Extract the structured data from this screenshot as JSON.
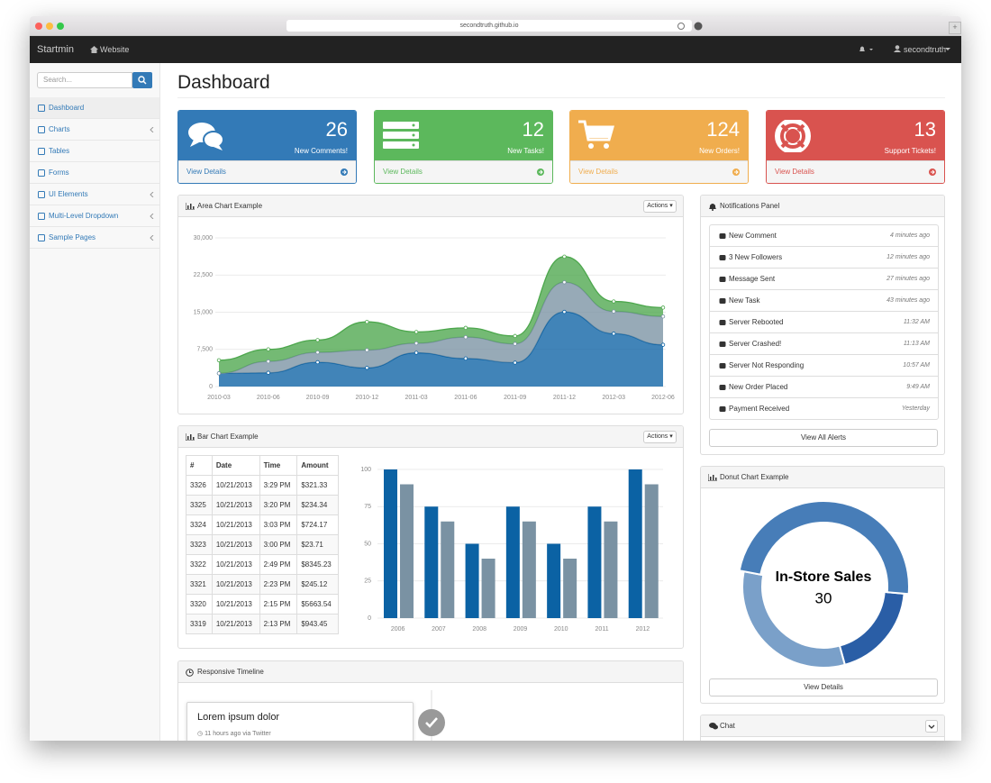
{
  "browser": {
    "url": "secondtruth.github.io"
  },
  "navbar": {
    "brand": "Startmin",
    "link": "Website",
    "user": "secondtruth"
  },
  "sidebar": {
    "search_placeholder": "Search...",
    "items": [
      "Dashboard",
      "Charts",
      "Tables",
      "Forms",
      "UI Elements",
      "Multi-Level Dropdown",
      "Sample Pages"
    ]
  },
  "page": {
    "title": "Dashboard"
  },
  "stats": [
    {
      "value": 26,
      "label": "New Comments!",
      "link": "View Details"
    },
    {
      "value": 12,
      "label": "New Tasks!",
      "link": "View Details"
    },
    {
      "value": 124,
      "label": "New Orders!",
      "link": "View Details"
    },
    {
      "value": 13,
      "label": "Support Tickets!",
      "link": "View Details"
    }
  ],
  "chart_data": [
    {
      "type": "area",
      "stacked": true,
      "title": "Area Chart Example",
      "menu": "Actions",
      "categories": [
        "2010-03",
        "2010-06",
        "2010-09",
        "2010-12",
        "2011-03",
        "2011-06",
        "2011-09",
        "2011-12",
        "2012-03",
        "2012-06"
      ],
      "series": [
        {
          "color": "#0b62a4",
          "values": [
            2666,
            2778,
            4912,
            3767,
            6810,
            5670,
            4820,
            15073,
            10687,
            8432
          ]
        },
        {
          "color": "#7a92a3",
          "values": [
            0,
            2294,
            1969,
            3597,
            1914,
            4293,
            3795,
            5967,
            4460,
            5713
          ]
        },
        {
          "color": "#4da74d",
          "values": [
            2647,
            2441,
            2501,
            5689,
            2293,
            1881,
            1588,
            5175,
            2028,
            1791
          ]
        }
      ],
      "ylim": [
        0,
        30000
      ],
      "yticks": [
        0,
        {
          "value": 7500,
          "label": "7,500"
        },
        {
          "value": 15000,
          "label": "15,000"
        },
        {
          "value": 22500,
          "label": "22,500"
        },
        {
          "value": 30000,
          "label": "30,000"
        }
      ],
      "grid": true
    },
    {
      "type": "bar",
      "title": "Bar Chart Example",
      "menu": "Actions",
      "categories": [
        "2006",
        "2007",
        "2008",
        "2009",
        "2010",
        "2011",
        "2012"
      ],
      "series": [
        {
          "color": "#0b62a4",
          "values": [
            100,
            75,
            50,
            75,
            50,
            75,
            100
          ]
        },
        {
          "color": "#7a92a3",
          "values": [
            90,
            65,
            40,
            65,
            40,
            65,
            90
          ]
        }
      ],
      "ylim": [
        0,
        100
      ],
      "yticks": [
        0,
        25,
        50,
        75,
        100
      ],
      "grid": true
    },
    {
      "type": "donut",
      "title": "Donut Chart Example",
      "button": "View Details",
      "categories": [
        null,
        null,
        "In-Store Sales"
      ],
      "values": [
        12,
        20,
        30
      ],
      "colors": [
        "#2a5ea6",
        "#7aa0c9",
        "#477db8"
      ]
    }
  ],
  "table": {
    "header": [
      "#",
      "Date",
      "Time",
      "Amount"
    ],
    "rows": [
      [
        "3326",
        "10/21/2013",
        "3:29 PM",
        "$321.33"
      ],
      [
        "3325",
        "10/21/2013",
        "3:20 PM",
        "$234.34"
      ],
      [
        "3324",
        "10/21/2013",
        "3:03 PM",
        "$724.17"
      ],
      [
        "3323",
        "10/21/2013",
        "3:00 PM",
        "$23.71"
      ],
      [
        "3322",
        "10/21/2013",
        "2:49 PM",
        "$8345.23"
      ],
      [
        "3321",
        "10/21/2013",
        "2:23 PM",
        "$245.12"
      ],
      [
        "3320",
        "10/21/2013",
        "2:15 PM",
        "$5663.54"
      ],
      [
        "3319",
        "10/21/2013",
        "2:13 PM",
        "$943.45"
      ]
    ]
  },
  "timeline": {
    "title": "Responsive Timeline",
    "entries": [
      {
        "heading": "Lorem ipsum dolor",
        "meta": "11 hours ago via Twitter"
      }
    ]
  },
  "notifications": {
    "title": "Notifications Panel",
    "items": [
      {
        "text": "New Comment",
        "time": "4 minutes ago"
      },
      {
        "text": "3 New Followers",
        "time": "12 minutes ago"
      },
      {
        "text": "Message Sent",
        "time": "27 minutes ago"
      },
      {
        "text": "New Task",
        "time": "43 minutes ago"
      },
      {
        "text": "Server Rebooted",
        "time": "11:32 AM"
      },
      {
        "text": "Server Crashed!",
        "time": "11:13 AM"
      },
      {
        "text": "Server Not Responding",
        "time": "10:57 AM"
      },
      {
        "text": "New Order Placed",
        "time": "9:49 AM"
      },
      {
        "text": "Payment Received",
        "time": "Yesterday"
      }
    ],
    "button": "View All Alerts"
  },
  "chat": {
    "title": "Chat"
  }
}
